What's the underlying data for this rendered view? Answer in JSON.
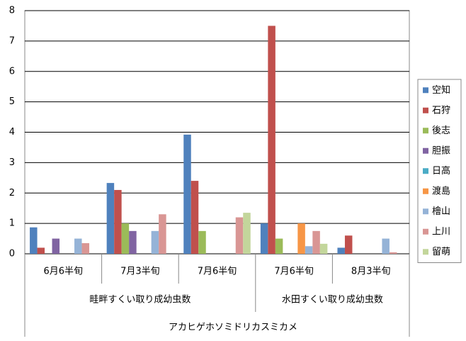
{
  "chart_data": {
    "type": "bar",
    "x_label": "アカヒゲホソミドリカスミカメ",
    "category_groups": [
      {
        "label": "畦畔すくい取り成幼虫数",
        "categories": [
          "6月6半旬",
          "7月3半旬",
          "7月6半旬"
        ]
      },
      {
        "label": "水田すくい取り成幼虫数",
        "categories": [
          "7月6半旬",
          "8月3半旬"
        ]
      }
    ],
    "series": [
      {
        "name": "空知",
        "color": "#4f81bd",
        "values": [
          0.87,
          2.33,
          3.92,
          1.0,
          0.2
        ]
      },
      {
        "name": "石狩",
        "color": "#c0504d",
        "values": [
          0.2,
          2.1,
          2.4,
          7.5,
          0.6
        ]
      },
      {
        "name": "後志",
        "color": "#9bbb59",
        "values": [
          0,
          1.0,
          0.75,
          0.5,
          0
        ]
      },
      {
        "name": "胆振",
        "color": "#8064a2",
        "values": [
          0.5,
          0.75,
          0,
          0,
          0
        ]
      },
      {
        "name": "日高",
        "color": "#4bacc6",
        "values": [
          0,
          0,
          0,
          0,
          0
        ]
      },
      {
        "name": "渡島",
        "color": "#f79646",
        "values": [
          0,
          0,
          0,
          1.0,
          0
        ]
      },
      {
        "name": "檜山",
        "color": "#95b3d7",
        "values": [
          0.5,
          0.75,
          0,
          0.25,
          0.5
        ]
      },
      {
        "name": "上川",
        "color": "#d99694",
        "values": [
          0.35,
          1.3,
          1.2,
          0.75,
          0.05
        ]
      },
      {
        "name": "留萌",
        "color": "#c3d69b",
        "values": [
          0,
          0,
          1.35,
          0.33,
          0
        ]
      }
    ],
    "ylim": [
      0,
      8
    ],
    "yticks": [
      0,
      1,
      2,
      3,
      4,
      5,
      6,
      7,
      8
    ],
    "grid": true,
    "legend": "right"
  }
}
